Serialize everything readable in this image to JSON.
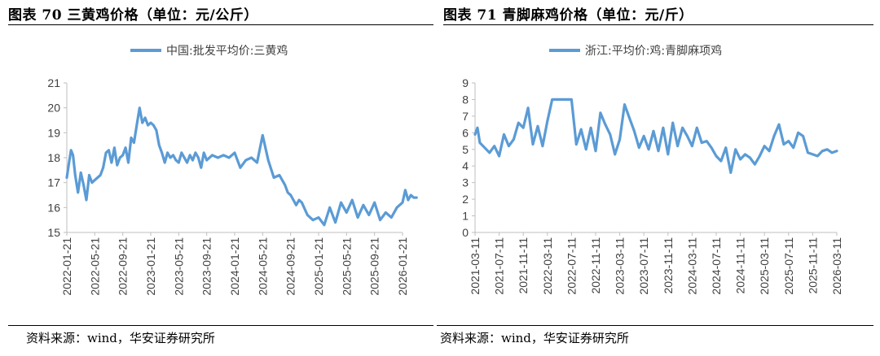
{
  "left": {
    "title": "图表 70 三黄鸡价格（单位：元/公斤）",
    "source": "资料来源：wind，华安证券研究所",
    "chart_data": {
      "type": "line",
      "title": "",
      "legend": "中国:批发平均价:三黄鸡",
      "legend_position": "top-center",
      "xlabel": "",
      "ylabel": "",
      "ylim": [
        15,
        21
      ],
      "yticks": [
        15,
        16,
        17,
        18,
        19,
        20,
        21
      ],
      "xticks": [
        "2022-01-21",
        "2022-05-21",
        "2022-09-21",
        "2023-01-21",
        "2023-05-21",
        "2023-09-21",
        "2024-01-21",
        "2024-05-21",
        "2024-09-21",
        "2025-01-21",
        "2025-05-21",
        "2025-09-21",
        "2026-01-21"
      ],
      "series": [
        {
          "name": "中国:批发平均价:三黄鸡",
          "color": "#5b9bd5",
          "x": [
            0,
            0.08,
            0.15,
            0.22,
            0.3,
            0.4,
            0.5,
            0.6,
            0.7,
            0.8,
            0.9,
            1.0,
            1.1,
            1.2,
            1.3,
            1.4,
            1.5,
            1.6,
            1.7,
            1.8,
            1.9,
            2.0,
            2.1,
            2.2,
            2.3,
            2.4,
            2.5,
            2.6,
            2.7,
            2.8,
            2.9,
            3.0,
            3.1,
            3.2,
            3.3,
            3.4,
            3.5,
            3.6,
            3.7,
            3.8,
            3.9,
            4.0,
            4.1,
            4.2,
            4.3,
            4.4,
            4.5,
            4.6,
            4.7,
            4.8,
            4.9,
            5.0,
            5.2,
            5.4,
            5.6,
            5.8,
            6.0,
            6.2,
            6.4,
            6.6,
            6.8,
            7.0,
            7.2,
            7.4,
            7.6,
            7.8,
            7.9,
            8.0,
            8.1,
            8.2,
            8.3,
            8.4,
            8.6,
            8.8,
            9.0,
            9.2,
            9.4,
            9.6,
            9.8,
            10.0,
            10.2,
            10.4,
            10.6,
            10.8,
            11.0,
            11.2,
            11.4,
            11.6,
            11.8,
            12.0,
            12.1,
            12.2,
            12.3,
            12.4,
            12.5
          ],
          "values": [
            17.2,
            17.8,
            18.3,
            18.1,
            17.3,
            16.6,
            17.4,
            16.9,
            16.3,
            17.3,
            17.0,
            17.1,
            17.2,
            17.3,
            17.6,
            18.2,
            18.3,
            17.8,
            18.4,
            17.7,
            18.0,
            18.1,
            18.4,
            17.8,
            18.8,
            18.6,
            19.3,
            20.0,
            19.4,
            19.6,
            19.3,
            19.4,
            19.3,
            19.1,
            18.5,
            18.2,
            17.8,
            18.2,
            18.0,
            18.1,
            17.9,
            17.8,
            18.2,
            18.0,
            17.8,
            18.1,
            17.9,
            18.2,
            18.0,
            17.6,
            18.2,
            17.9,
            18.1,
            18.0,
            18.1,
            18.0,
            18.2,
            17.6,
            17.9,
            18.0,
            17.8,
            18.9,
            17.9,
            17.2,
            17.3,
            16.9,
            16.6,
            16.5,
            16.3,
            16.1,
            16.3,
            16.2,
            15.7,
            15.5,
            15.6,
            15.3,
            16.0,
            15.4,
            16.2,
            15.8,
            16.3,
            15.6,
            16.1,
            15.7,
            16.2,
            15.5,
            15.8,
            15.6,
            16.0,
            16.2,
            16.7,
            16.3,
            16.5,
            16.4,
            16.4
          ]
        }
      ]
    }
  },
  "right": {
    "title": "图表 71 青脚麻鸡价格（单位：元/斤）",
    "source": "资料来源：wind，华安证券研究所",
    "chart_data": {
      "type": "line",
      "title": "",
      "legend": "浙江:平均价:鸡:青脚麻项鸡",
      "legend_position": "top-center",
      "xlabel": "",
      "ylabel": "",
      "ylim": [
        0,
        9
      ],
      "yticks": [
        0,
        1,
        2,
        3,
        4,
        5,
        6,
        7,
        8,
        9
      ],
      "xticks": [
        "2021-03-11",
        "2021-07-11",
        "2021-11-11",
        "2022-03-11",
        "2022-07-11",
        "2022-11-11",
        "2023-03-11",
        "2023-07-11",
        "2023-11-11",
        "2024-03-11",
        "2024-07-11",
        "2024-11-11",
        "2025-03-11",
        "2025-07-11",
        "2025-11-11",
        "2026-03-11"
      ],
      "series": [
        {
          "name": "浙江:平均价:鸡:青脚麻项鸡",
          "color": "#5b9bd5",
          "x": [
            0,
            0.1,
            0.2,
            0.4,
            0.6,
            0.8,
            1.0,
            1.2,
            1.4,
            1.6,
            1.8,
            2.0,
            2.2,
            2.4,
            2.6,
            2.8,
            3.0,
            3.2,
            3.4,
            3.6,
            3.8,
            4.0,
            4.2,
            4.4,
            4.6,
            4.8,
            5.0,
            5.2,
            5.4,
            5.6,
            5.8,
            6.0,
            6.2,
            6.4,
            6.6,
            6.8,
            7.0,
            7.2,
            7.4,
            7.6,
            7.8,
            8.0,
            8.2,
            8.4,
            8.6,
            8.8,
            9.0,
            9.2,
            9.4,
            9.6,
            9.8,
            10.0,
            10.2,
            10.4,
            10.6,
            10.8,
            11.0,
            11.2,
            11.4,
            11.6,
            11.8,
            12.0,
            12.2,
            12.4,
            12.6,
            12.8,
            13.0,
            13.2,
            13.4,
            13.6,
            13.8,
            14.0,
            14.2,
            14.4,
            14.6,
            14.8,
            15.0
          ],
          "values": [
            5.9,
            6.3,
            5.4,
            5.1,
            4.8,
            5.2,
            4.6,
            5.9,
            5.2,
            5.6,
            6.6,
            6.3,
            7.5,
            5.3,
            6.4,
            5.2,
            6.7,
            8.0,
            8.0,
            8.0,
            8.0,
            8.0,
            5.3,
            6.2,
            5.0,
            6.3,
            4.9,
            7.2,
            6.5,
            5.9,
            4.7,
            5.6,
            7.7,
            6.9,
            6.1,
            5.1,
            5.8,
            5.0,
            6.1,
            4.9,
            6.3,
            4.7,
            6.6,
            5.2,
            6.3,
            5.8,
            5.2,
            6.3,
            5.4,
            5.5,
            5.1,
            4.6,
            4.3,
            5.1,
            3.6,
            5.0,
            4.4,
            4.7,
            4.5,
            4.1,
            4.6,
            5.2,
            4.9,
            5.8,
            6.5,
            5.3,
            5.5,
            5.1,
            6.0,
            5.8,
            4.8,
            4.7,
            4.6,
            4.9,
            5.0,
            4.8,
            4.9
          ]
        }
      ]
    }
  }
}
